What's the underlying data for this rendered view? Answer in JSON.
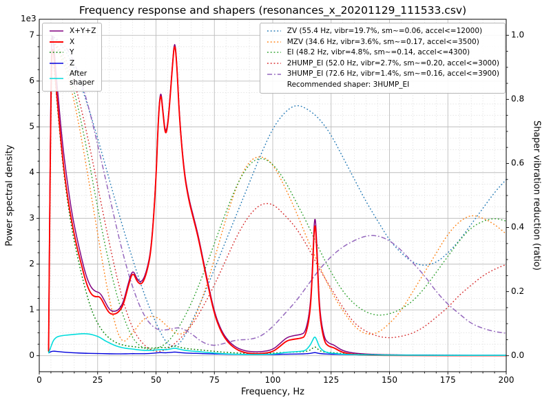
{
  "chart_data": {
    "type": "line",
    "title": "Frequency response and shapers (resonances_x_20201129_111533.csv)",
    "xlabel": "Frequency, Hz",
    "ylabel_left": "Power spectral density",
    "ylabel_right": "Shaper vibration reduction (ratio)",
    "left_scale_label": "1e3",
    "left_scale": 1000,
    "xlim": [
      0,
      200
    ],
    "left_ylim": [
      -350,
      7350
    ],
    "right_ylim": [
      -0.05,
      1.05
    ],
    "x_ticks": [
      0,
      25,
      50,
      75,
      100,
      125,
      150,
      175,
      200
    ],
    "x_minor_step": 5,
    "left_ticks": [
      0,
      1,
      2,
      3,
      4,
      5,
      6,
      7
    ],
    "left_minor_step": 250,
    "right_ticks": [
      0.0,
      0.2,
      0.4,
      0.6,
      0.8,
      1.0
    ],
    "right_minor_step": 0.05,
    "grid": {
      "major_color": "#bdbdbd",
      "minor_color": "#dedede"
    },
    "legend_position": {
      "psd": "upper left",
      "shapers": "upper right"
    },
    "psd_x": [
      4,
      5,
      6,
      7,
      8,
      10,
      12,
      14,
      16,
      18,
      20,
      22,
      24,
      26,
      28,
      30,
      32,
      34,
      36,
      38,
      40,
      42,
      44,
      46,
      48,
      50,
      51,
      52,
      53,
      54,
      55,
      56,
      57,
      58,
      59,
      60,
      62,
      64,
      66,
      68,
      70,
      72,
      75,
      78,
      81,
      84,
      87,
      90,
      95,
      100,
      103,
      106,
      109,
      112,
      114,
      116,
      117,
      118,
      119,
      120,
      122,
      124,
      126,
      128,
      130,
      133,
      136,
      140,
      145,
      150,
      160,
      170,
      180,
      190,
      200
    ],
    "psd_series": [
      {
        "name": "x+y+z",
        "label": "X+Y+Z",
        "color": "#800080",
        "dash": "solid",
        "lw": 1.5,
        "values": [
          150,
          7000,
          6950,
          6300,
          5700,
          4600,
          3800,
          3100,
          2600,
          2150,
          1750,
          1500,
          1400,
          1380,
          1200,
          1000,
          960,
          1000,
          1160,
          1560,
          1900,
          1650,
          1600,
          1850,
          2350,
          3850,
          5250,
          5850,
          5350,
          4850,
          5050,
          5650,
          6350,
          6950,
          6350,
          5250,
          4050,
          3450,
          3050,
          2650,
          2150,
          1650,
          950,
          540,
          320,
          190,
          120,
          90,
          80,
          130,
          260,
          400,
          440,
          460,
          510,
          1000,
          1900,
          3250,
          2350,
          1000,
          380,
          270,
          240,
          170,
          110,
          70,
          50,
          35,
          25,
          20,
          12,
          10,
          8,
          8,
          8
        ]
      },
      {
        "name": "x",
        "label": "X",
        "color": "#ff0000",
        "dash": "solid",
        "lw": 1.9,
        "values": [
          100,
          6500,
          6800,
          6000,
          5400,
          4300,
          3500,
          2900,
          2400,
          2000,
          1600,
          1350,
          1280,
          1300,
          1100,
          920,
          900,
          950,
          1100,
          1500,
          1850,
          1600,
          1550,
          1800,
          2300,
          3800,
          5200,
          5800,
          5300,
          4800,
          5000,
          5600,
          6300,
          6900,
          6300,
          5200,
          4000,
          3400,
          3000,
          2600,
          2100,
          1600,
          900,
          500,
          280,
          150,
          80,
          50,
          40,
          80,
          200,
          330,
          360,
          380,
          420,
          900,
          1800,
          3100,
          2200,
          900,
          300,
          200,
          180,
          120,
          70,
          40,
          25,
          15,
          10,
          8,
          5,
          4,
          3,
          3,
          3
        ]
      },
      {
        "name": "y",
        "label": "Y",
        "color": "#008000",
        "dash": "dotted",
        "lw": 1.5,
        "values": [
          80,
          6200,
          6500,
          5900,
          5300,
          4200,
          3400,
          2750,
          2250,
          1800,
          1400,
          1050,
          800,
          620,
          480,
          380,
          310,
          260,
          230,
          210,
          200,
          185,
          175,
          170,
          165,
          170,
          175,
          180,
          180,
          175,
          180,
          190,
          200,
          210,
          200,
          185,
          165,
          150,
          140,
          130,
          120,
          110,
          95,
          80,
          70,
          60,
          55,
          50,
          50,
          55,
          65,
          75,
          80,
          85,
          90,
          120,
          160,
          200,
          160,
          110,
          80,
          70,
          65,
          55,
          45,
          38,
          32,
          28,
          22,
          18,
          12,
          10,
          8,
          7,
          6
        ]
      },
      {
        "name": "z",
        "label": "Z",
        "color": "#0000dd",
        "dash": "solid",
        "lw": 1.4,
        "values": [
          60,
          90,
          100,
          95,
          90,
          80,
          72,
          66,
          60,
          56,
          52,
          50,
          48,
          46,
          44,
          42,
          40,
          40,
          40,
          42,
          45,
          44,
          43,
          45,
          50,
          60,
          65,
          68,
          66,
          63,
          65,
          70,
          75,
          80,
          75,
          68,
          60,
          55,
          52,
          50,
          46,
          42,
          38,
          34,
          30,
          28,
          26,
          25,
          24,
          26,
          30,
          34,
          36,
          38,
          40,
          50,
          60,
          70,
          60,
          48,
          38,
          34,
          32,
          28,
          25,
          22,
          20,
          18,
          16,
          15,
          12,
          11,
          10,
          10,
          10
        ]
      },
      {
        "name": "after_shaper",
        "label": "After\nshaper",
        "color": "#00dcdc",
        "dash": "solid",
        "lw": 1.6,
        "values": [
          50,
          200,
          330,
          390,
          420,
          440,
          450,
          460,
          470,
          480,
          480,
          470,
          440,
          400,
          330,
          280,
          230,
          195,
          170,
          155,
          145,
          130,
          120,
          115,
          115,
          125,
          130,
          135,
          133,
          130,
          135,
          145,
          155,
          165,
          155,
          140,
          120,
          108,
          98,
          90,
          80,
          70,
          58,
          46,
          38,
          32,
          28,
          25,
          25,
          35,
          55,
          75,
          85,
          95,
          110,
          220,
          330,
          430,
          330,
          180,
          90,
          60,
          52,
          42,
          32,
          26,
          22,
          18,
          15,
          13,
          10,
          9,
          8,
          8,
          8
        ]
      }
    ],
    "shaper_x": [
      5,
      10,
      15,
      20,
      25,
      30,
      35,
      40,
      45,
      50,
      55,
      60,
      65,
      70,
      75,
      80,
      85,
      90,
      95,
      100,
      105,
      110,
      115,
      120,
      125,
      130,
      135,
      140,
      145,
      150,
      155,
      160,
      165,
      170,
      175,
      180,
      185,
      190,
      195,
      200
    ],
    "shaper_series": [
      {
        "name": "ZV",
        "label": "ZV (55.4 Hz, vibr=19.7%, sm~=0.06, accel<=12000)",
        "color": "#1f77b4",
        "dash": "dotted",
        "lw": 1.4,
        "values": [
          1.0,
          0.97,
          0.9,
          0.8,
          0.68,
          0.55,
          0.42,
          0.3,
          0.19,
          0.1,
          0.03,
          0.03,
          0.1,
          0.18,
          0.27,
          0.36,
          0.45,
          0.54,
          0.63,
          0.71,
          0.76,
          0.785,
          0.77,
          0.74,
          0.69,
          0.62,
          0.55,
          0.48,
          0.42,
          0.36,
          0.32,
          0.29,
          0.28,
          0.29,
          0.32,
          0.36,
          0.41,
          0.46,
          0.51,
          0.55
        ]
      },
      {
        "name": "MZV",
        "label": "MZV (34.6 Hz, vibr=3.6%, sm~=0.17, accel<=3500)",
        "color": "#ff7f0e",
        "dash": "dotted",
        "lw": 1.4,
        "values": [
          0.99,
          0.93,
          0.8,
          0.6,
          0.38,
          0.17,
          0.03,
          0.07,
          0.12,
          0.125,
          0.09,
          0.06,
          0.09,
          0.18,
          0.3,
          0.43,
          0.54,
          0.61,
          0.625,
          0.6,
          0.53,
          0.45,
          0.36,
          0.28,
          0.2,
          0.14,
          0.09,
          0.065,
          0.07,
          0.1,
          0.14,
          0.2,
          0.26,
          0.32,
          0.38,
          0.42,
          0.44,
          0.43,
          0.41,
          0.38
        ]
      },
      {
        "name": "EI",
        "label": "EI (48.2 Hz, vibr=4.8%, sm~=0.14, accel<=4300)",
        "color": "#2ca02c",
        "dash": "dotted",
        "lw": 1.4,
        "values": [
          0.99,
          0.94,
          0.83,
          0.66,
          0.46,
          0.28,
          0.14,
          0.05,
          0.02,
          0.02,
          0.04,
          0.09,
          0.16,
          0.25,
          0.35,
          0.45,
          0.54,
          0.6,
          0.62,
          0.6,
          0.55,
          0.48,
          0.41,
          0.33,
          0.26,
          0.2,
          0.16,
          0.135,
          0.125,
          0.13,
          0.145,
          0.17,
          0.21,
          0.26,
          0.31,
          0.36,
          0.4,
          0.42,
          0.43,
          0.42
        ]
      },
      {
        "name": "2HUMP_EI",
        "label": "2HUMP_EI (52.0 Hz, vibr=2.7%, sm~=0.20, accel<=3000)",
        "color": "#d62728",
        "dash": "dotted",
        "lw": 1.4,
        "values": [
          0.99,
          0.95,
          0.86,
          0.71,
          0.53,
          0.35,
          0.19,
          0.08,
          0.03,
          0.01,
          0.02,
          0.05,
          0.09,
          0.15,
          0.22,
          0.3,
          0.38,
          0.44,
          0.475,
          0.475,
          0.44,
          0.4,
          0.34,
          0.27,
          0.21,
          0.15,
          0.1,
          0.075,
          0.06,
          0.055,
          0.06,
          0.07,
          0.09,
          0.12,
          0.15,
          0.19,
          0.22,
          0.25,
          0.27,
          0.285
        ]
      },
      {
        "name": "3HUMP_EI",
        "label": "3HUMP_EI (72.6 Hz, vibr=1.4%, sm~=0.16, accel<=3900)",
        "color": "#9467bd",
        "dash": "dashdot",
        "lw": 1.5,
        "values": [
          1.0,
          0.98,
          0.92,
          0.81,
          0.66,
          0.5,
          0.34,
          0.21,
          0.12,
          0.08,
          0.08,
          0.09,
          0.07,
          0.04,
          0.03,
          0.04,
          0.05,
          0.05,
          0.06,
          0.09,
          0.13,
          0.17,
          0.22,
          0.27,
          0.31,
          0.34,
          0.36,
          0.375,
          0.375,
          0.36,
          0.33,
          0.29,
          0.25,
          0.2,
          0.16,
          0.13,
          0.1,
          0.085,
          0.075,
          0.07
        ]
      }
    ],
    "recommended_label": "Recommended shaper: 3HUMP_EI"
  }
}
